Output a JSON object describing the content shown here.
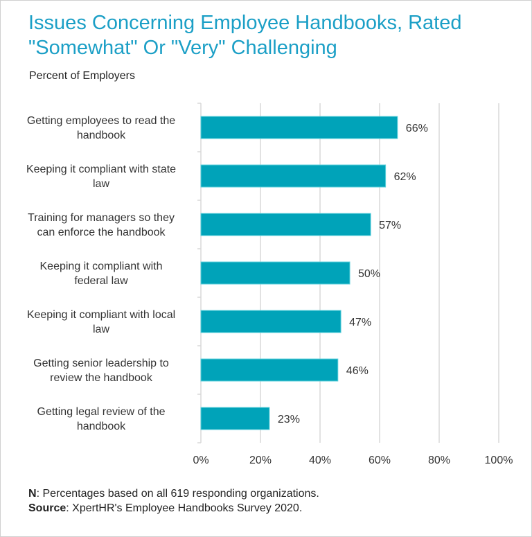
{
  "chart_data": {
    "type": "bar",
    "orientation": "horizontal",
    "title": "Issues Concerning Employee Handbooks, Rated \"Somewhat\" Or \"Very\" Challenging",
    "subtitle": "Percent of Employers",
    "categories": [
      [
        "Getting employees to read the",
        "handbook"
      ],
      [
        "Keeping it compliant with state",
        "law"
      ],
      [
        "Training for managers so they",
        "can enforce the handbook"
      ],
      [
        "Keeping it compliant with",
        "federal law"
      ],
      [
        "Keeping it compliant with local",
        "law"
      ],
      [
        "Getting senior leadership to",
        "review the handbook"
      ],
      [
        "Getting legal review of the",
        "handbook"
      ]
    ],
    "values": [
      66,
      62,
      57,
      50,
      47,
      46,
      23
    ],
    "data_labels": [
      "66%",
      "62%",
      "57%",
      "50%",
      "47%",
      "46%",
      "23%"
    ],
    "xlim": [
      0,
      100
    ],
    "x_ticks": [
      0,
      20,
      40,
      60,
      80,
      100
    ],
    "x_tick_labels": [
      "0%",
      "20%",
      "40%",
      "60%",
      "80%",
      "100%"
    ],
    "grid": "vertical",
    "legend": "none",
    "bar_color": "#00a3b9",
    "title_color": "#1b9fc6"
  },
  "notes": {
    "n_label": "N",
    "n_text": ": Percentages based on all 619 responding organizations.",
    "source_label": "Source",
    "source_text": ": XpertHR's Employee Handbooks Survey 2020."
  }
}
